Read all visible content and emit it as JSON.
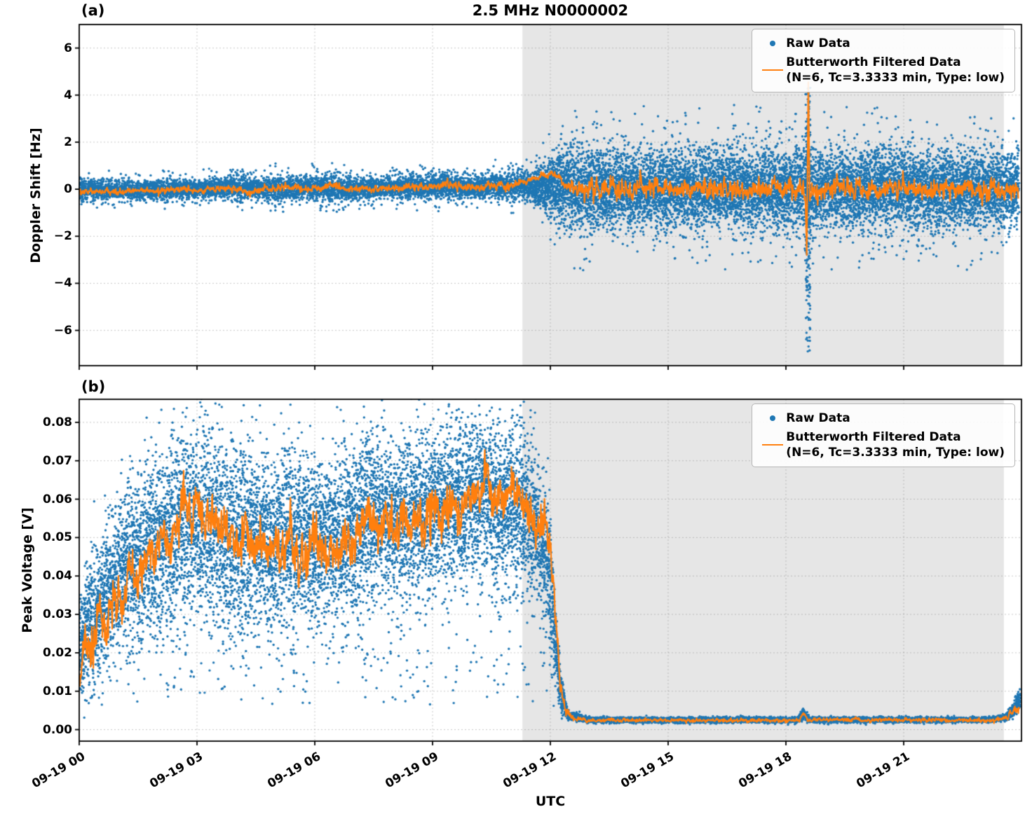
{
  "figure": {
    "title": "2.5 MHz N0000002",
    "xlabel": "UTC",
    "colors": {
      "raw": "#1f77b4",
      "filtered": "#ff7f0e",
      "shade": "#e6e6e6",
      "grid": "#787878"
    }
  },
  "legend": {
    "position": "upper right",
    "raw_label": "Raw Data",
    "filtered_label_line1": "Butterworth Filtered Data",
    "filtered_label_line2": "(N=6, Tc=3.3333 min, Type: low)"
  },
  "x_axis": {
    "lim": [
      0,
      24
    ],
    "ticks": [
      0,
      3,
      6,
      9,
      12,
      15,
      18,
      21
    ],
    "tick_labels": [
      "09-19 00",
      "09-19 03",
      "09-19 06",
      "09-19 09",
      "09-19 12",
      "09-19 15",
      "09-19 18",
      "09-19 21"
    ]
  },
  "shade_region_utc_hours": [
    11.29,
    23.55
  ],
  "chart_data": [
    {
      "panel": "(a)",
      "type": "scatter+line",
      "ylabel": "Doppler Shift [Hz]",
      "ylim": [
        -7.5,
        7.0
      ],
      "yticks": [
        -6,
        -4,
        -2,
        0,
        2,
        4,
        6
      ],
      "ytick_labels": [
        "−6",
        "−4",
        "−2",
        "0",
        "2",
        "4",
        "6"
      ],
      "raw": {
        "t_end": 23.93,
        "bias": 0.5,
        "sd_frac": 0.2,
        "envelope": [
          [
            0.0,
            -0.75,
            0.85
          ],
          [
            0.15,
            -0.55,
            0.5
          ],
          [
            1.0,
            -0.55,
            0.5
          ],
          [
            1.8,
            -0.5,
            0.5
          ],
          [
            2.3,
            -0.65,
            0.55
          ],
          [
            3.0,
            -0.5,
            0.5
          ],
          [
            3.6,
            -0.55,
            0.6
          ],
          [
            4.1,
            -0.65,
            0.85
          ],
          [
            4.5,
            -0.5,
            0.55
          ],
          [
            5.1,
            -0.75,
            0.85
          ],
          [
            5.6,
            -0.55,
            0.6
          ],
          [
            6.4,
            -0.8,
            0.9
          ],
          [
            6.9,
            -0.55,
            0.6
          ],
          [
            7.8,
            -0.5,
            0.6
          ],
          [
            8.6,
            -0.55,
            0.75
          ],
          [
            9.4,
            -0.6,
            0.95
          ],
          [
            9.9,
            -0.55,
            0.65
          ],
          [
            10.6,
            -0.6,
            0.85
          ],
          [
            11.1,
            -0.65,
            0.9
          ],
          [
            11.5,
            -0.8,
            1.1
          ],
          [
            11.8,
            -1.0,
            1.3
          ],
          [
            12.0,
            -1.4,
            1.6
          ],
          [
            12.2,
            -1.9,
            2.0
          ],
          [
            12.5,
            -2.15,
            2.2
          ],
          [
            13.5,
            -2.2,
            2.25
          ],
          [
            15.0,
            -2.15,
            2.2
          ],
          [
            16.5,
            -2.2,
            2.25
          ],
          [
            18.0,
            -2.2,
            2.2
          ],
          [
            19.5,
            -2.2,
            2.25
          ],
          [
            21.0,
            -2.15,
            2.2
          ],
          [
            22.5,
            -2.15,
            2.15
          ],
          [
            23.4,
            -2.05,
            2.1
          ],
          [
            23.93,
            -1.9,
            2.0
          ]
        ],
        "density": [
          [
            0,
            2
          ],
          [
            11.4,
            2
          ],
          [
            11.8,
            3
          ],
          [
            23.93,
            3
          ]
        ],
        "spike": {
          "t0": 18.5,
          "t1": 18.62,
          "lo": -7.0,
          "hi": 4.35,
          "n": 190
        }
      },
      "filtered": {
        "control": [
          [
            0,
            -0.05
          ],
          [
            0.5,
            -0.1
          ],
          [
            1.0,
            -0.12
          ],
          [
            1.5,
            -0.05
          ],
          [
            2.0,
            -0.08
          ],
          [
            2.5,
            0.0
          ],
          [
            3.0,
            -0.05
          ],
          [
            3.5,
            0.02
          ],
          [
            4.0,
            0.05
          ],
          [
            4.3,
            -0.18
          ],
          [
            4.6,
            0.0
          ],
          [
            5.0,
            0.02
          ],
          [
            5.4,
            0.12
          ],
          [
            5.8,
            -0.02
          ],
          [
            6.2,
            0.05
          ],
          [
            6.5,
            0.18
          ],
          [
            6.8,
            0.0
          ],
          [
            7.2,
            0.02
          ],
          [
            7.6,
            0.0
          ],
          [
            8.0,
            0.05
          ],
          [
            8.5,
            0.08
          ],
          [
            9.0,
            0.1
          ],
          [
            9.5,
            0.22
          ],
          [
            9.8,
            0.05
          ],
          [
            10.2,
            0.08
          ],
          [
            10.6,
            0.12
          ],
          [
            11.0,
            0.15
          ],
          [
            11.3,
            0.28
          ],
          [
            11.6,
            0.45
          ],
          [
            11.85,
            0.6
          ],
          [
            12.05,
            0.68
          ],
          [
            12.25,
            0.45
          ],
          [
            12.45,
            0.1
          ],
          [
            12.7,
            -0.05
          ],
          [
            13.0,
            0.0
          ],
          [
            18.44,
            0.0
          ],
          [
            18.5,
            -0.6
          ],
          [
            18.53,
            -2.6
          ],
          [
            18.57,
            4.3
          ],
          [
            18.61,
            -0.5
          ],
          [
            18.66,
            0.0
          ],
          [
            23.93,
            0.0
          ]
        ],
        "noise_amp": [
          [
            0,
            0.07
          ],
          [
            11.2,
            0.08
          ],
          [
            11.6,
            0.06
          ],
          [
            12.4,
            0.1
          ],
          [
            12.8,
            0.22
          ],
          [
            23.93,
            0.22
          ]
        ]
      }
    },
    {
      "panel": "(b)",
      "type": "scatter+line",
      "ylabel": "Peak Voltage [V]",
      "ylim": [
        -0.003,
        0.086
      ],
      "yticks": [
        0,
        0.01,
        0.02,
        0.03,
        0.04,
        0.05,
        0.06,
        0.07,
        0.08
      ],
      "ytick_labels": [
        "0.00",
        "0.01",
        "0.02",
        "0.03",
        "0.04",
        "0.05",
        "0.06",
        "0.07",
        "0.08"
      ],
      "raw": {
        "t_end": 23.96,
        "bias": 0.6,
        "sd_frac": 0.2,
        "envelope": [
          [
            0.0,
            0.004,
            0.032
          ],
          [
            0.2,
            0.005,
            0.042
          ],
          [
            0.5,
            0.006,
            0.05
          ],
          [
            0.9,
            0.01,
            0.058
          ],
          [
            1.3,
            0.012,
            0.065
          ],
          [
            1.7,
            0.015,
            0.07
          ],
          [
            2.1,
            0.014,
            0.073
          ],
          [
            2.5,
            0.015,
            0.079
          ],
          [
            3.0,
            0.016,
            0.081
          ],
          [
            3.4,
            0.015,
            0.077
          ],
          [
            3.9,
            0.013,
            0.074
          ],
          [
            4.4,
            0.015,
            0.073
          ],
          [
            4.9,
            0.013,
            0.071
          ],
          [
            5.4,
            0.016,
            0.074
          ],
          [
            5.9,
            0.018,
            0.071
          ],
          [
            6.4,
            0.02,
            0.07
          ],
          [
            6.9,
            0.018,
            0.074
          ],
          [
            7.4,
            0.022,
            0.078
          ],
          [
            7.9,
            0.025,
            0.075
          ],
          [
            8.4,
            0.024,
            0.077
          ],
          [
            8.9,
            0.026,
            0.078
          ],
          [
            9.4,
            0.027,
            0.079
          ],
          [
            9.9,
            0.028,
            0.081
          ],
          [
            10.3,
            0.03,
            0.082
          ],
          [
            10.7,
            0.026,
            0.078
          ],
          [
            11.0,
            0.028,
            0.08
          ],
          [
            11.4,
            0.026,
            0.077
          ],
          [
            11.7,
            0.024,
            0.071
          ],
          [
            11.95,
            0.018,
            0.06
          ],
          [
            12.1,
            0.008,
            0.04
          ],
          [
            12.25,
            0.004,
            0.015
          ],
          [
            12.45,
            0.002,
            0.005
          ],
          [
            13.0,
            0.0015,
            0.0032
          ],
          [
            18.3,
            0.0015,
            0.0032
          ],
          [
            18.45,
            0.002,
            0.0058
          ],
          [
            18.6,
            0.0015,
            0.0032
          ],
          [
            23.2,
            0.0015,
            0.0032
          ],
          [
            23.6,
            0.002,
            0.004
          ],
          [
            23.85,
            0.0025,
            0.008
          ],
          [
            23.96,
            0.003,
            0.012
          ]
        ],
        "density": [
          [
            0,
            3
          ],
          [
            12.25,
            3
          ],
          [
            12.45,
            2
          ],
          [
            23.96,
            2
          ]
        ],
        "spike": null
      },
      "filtered": {
        "control": [
          [
            0,
            0.012
          ],
          [
            0.15,
            0.022
          ],
          [
            0.3,
            0.018
          ],
          [
            0.5,
            0.03
          ],
          [
            0.7,
            0.027
          ],
          [
            0.9,
            0.036
          ],
          [
            1.1,
            0.031
          ],
          [
            1.3,
            0.044
          ],
          [
            1.5,
            0.04
          ],
          [
            1.7,
            0.047
          ],
          [
            1.9,
            0.043
          ],
          [
            2.1,
            0.05
          ],
          [
            2.3,
            0.046
          ],
          [
            2.5,
            0.052
          ],
          [
            2.65,
            0.064
          ],
          [
            2.8,
            0.054
          ],
          [
            3.0,
            0.06
          ],
          [
            3.2,
            0.051
          ],
          [
            3.4,
            0.057
          ],
          [
            3.6,
            0.05
          ],
          [
            3.8,
            0.053
          ],
          [
            4.0,
            0.048
          ],
          [
            4.2,
            0.052
          ],
          [
            4.4,
            0.046
          ],
          [
            4.6,
            0.051
          ],
          [
            4.8,
            0.045
          ],
          [
            5.0,
            0.05
          ],
          [
            5.2,
            0.044
          ],
          [
            5.4,
            0.05
          ],
          [
            5.6,
            0.043
          ],
          [
            5.8,
            0.047
          ],
          [
            6.0,
            0.05
          ],
          [
            6.2,
            0.046
          ],
          [
            6.4,
            0.049
          ],
          [
            6.6,
            0.045
          ],
          [
            6.8,
            0.051
          ],
          [
            7.0,
            0.047
          ],
          [
            7.2,
            0.054
          ],
          [
            7.4,
            0.058
          ],
          [
            7.6,
            0.051
          ],
          [
            7.8,
            0.055
          ],
          [
            8.0,
            0.05
          ],
          [
            8.2,
            0.056
          ],
          [
            8.4,
            0.052
          ],
          [
            8.6,
            0.057
          ],
          [
            8.8,
            0.053
          ],
          [
            9.0,
            0.059
          ],
          [
            9.2,
            0.054
          ],
          [
            9.4,
            0.061
          ],
          [
            9.6,
            0.056
          ],
          [
            9.8,
            0.058
          ],
          [
            10.0,
            0.063
          ],
          [
            10.2,
            0.06
          ],
          [
            10.35,
            0.068
          ],
          [
            10.5,
            0.061
          ],
          [
            10.7,
            0.057
          ],
          [
            10.9,
            0.06
          ],
          [
            11.1,
            0.063
          ],
          [
            11.3,
            0.058
          ],
          [
            11.5,
            0.056
          ],
          [
            11.7,
            0.053
          ],
          [
            11.85,
            0.055
          ],
          [
            11.95,
            0.05
          ],
          [
            12.05,
            0.042
          ],
          [
            12.15,
            0.028
          ],
          [
            12.25,
            0.012
          ],
          [
            12.4,
            0.005
          ],
          [
            12.6,
            0.003
          ],
          [
            13.0,
            0.0024
          ],
          [
            18.35,
            0.0024
          ],
          [
            18.45,
            0.0045
          ],
          [
            18.55,
            0.0026
          ],
          [
            23.3,
            0.0024
          ],
          [
            23.6,
            0.003
          ],
          [
            23.8,
            0.0045
          ],
          [
            23.96,
            0.006
          ]
        ],
        "noise_amp": [
          [
            0,
            0.003
          ],
          [
            11.8,
            0.003
          ],
          [
            12.3,
            0.001
          ],
          [
            12.6,
            0.00025
          ],
          [
            23.5,
            0.00025
          ],
          [
            23.96,
            0.0008
          ]
        ]
      }
    }
  ]
}
